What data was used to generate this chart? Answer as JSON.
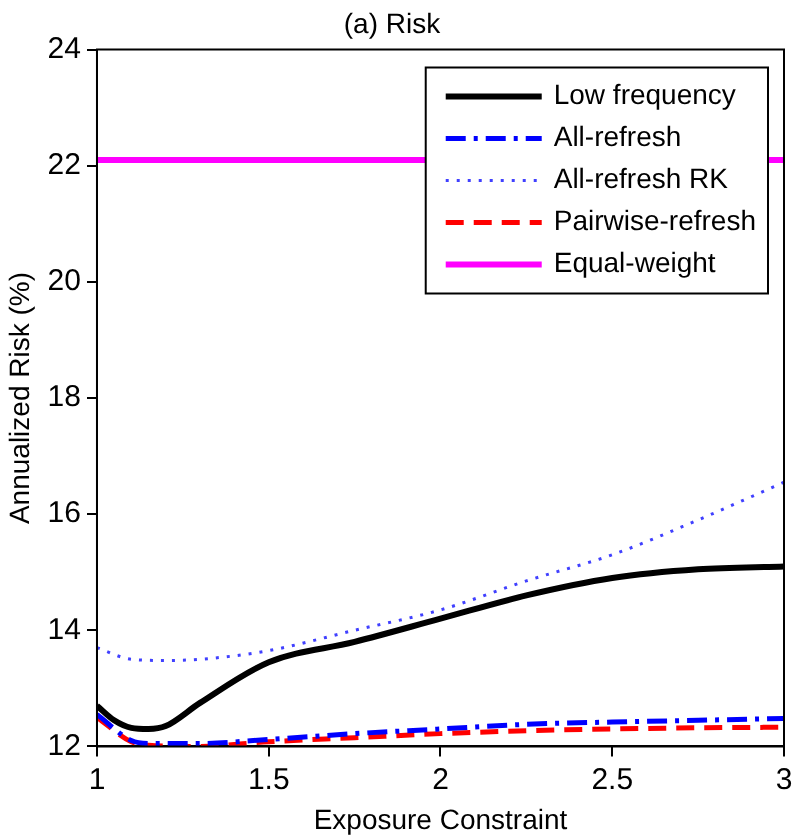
{
  "chart_data": {
    "type": "line",
    "title": "(a) Risk",
    "xlabel": "Exposure Constraint",
    "ylabel": "Annualized Risk (%)",
    "xlim": [
      1,
      3
    ],
    "xticks": [
      1,
      1.5,
      2,
      2.5,
      3
    ],
    "ylim": [
      12,
      24
    ],
    "yticks": [
      12,
      14,
      16,
      18,
      20,
      22,
      24
    ],
    "grid": false,
    "legend": "top right",
    "marker": "none",
    "series": [
      {
        "name": "Low frequency",
        "color": "#000000",
        "line_style": "solid",
        "x": [
          1,
          1.05,
          1.1,
          1.15,
          1.2,
          1.3,
          1.5,
          1.75,
          2,
          2.25,
          2.5,
          2.75,
          3
        ],
        "values": [
          12.7,
          12.45,
          12.32,
          12.3,
          12.35,
          12.75,
          13.45,
          13.8,
          14.2,
          14.6,
          14.9,
          15.05,
          15.1
        ]
      },
      {
        "name": "All-refresh",
        "color": "#0000ff",
        "line_style": "dashdot",
        "x": [
          1,
          1.1,
          1.15,
          1.3,
          1.5,
          1.75,
          2,
          2.25,
          2.5,
          2.75,
          3
        ],
        "values": [
          12.55,
          12.1,
          12.05,
          12.05,
          12.12,
          12.22,
          12.3,
          12.38,
          12.42,
          12.45,
          12.48
        ]
      },
      {
        "name": "All-refresh RK",
        "color": "#4040ff",
        "line_style": "dotted",
        "x": [
          1,
          1.1,
          1.2,
          1.3,
          1.5,
          1.75,
          2,
          2.25,
          2.5,
          2.75,
          3
        ],
        "values": [
          13.7,
          13.5,
          13.48,
          13.5,
          13.65,
          14.0,
          14.35,
          14.85,
          15.3,
          15.9,
          16.55
        ]
      },
      {
        "name": "Pairwise-refresh",
        "color": "#ff0000",
        "line_style": "dashed",
        "x": [
          1,
          1.1,
          1.15,
          1.3,
          1.5,
          1.75,
          2,
          2.25,
          2.5,
          2.75,
          3
        ],
        "values": [
          12.5,
          12.08,
          12.02,
          12.0,
          12.08,
          12.15,
          12.22,
          12.27,
          12.3,
          12.32,
          12.33
        ]
      },
      {
        "name": "Equal-weight",
        "color": "#ff00ff",
        "line_style": "solid",
        "x": [
          1,
          3
        ],
        "values": [
          22.1,
          22.1
        ]
      }
    ]
  }
}
